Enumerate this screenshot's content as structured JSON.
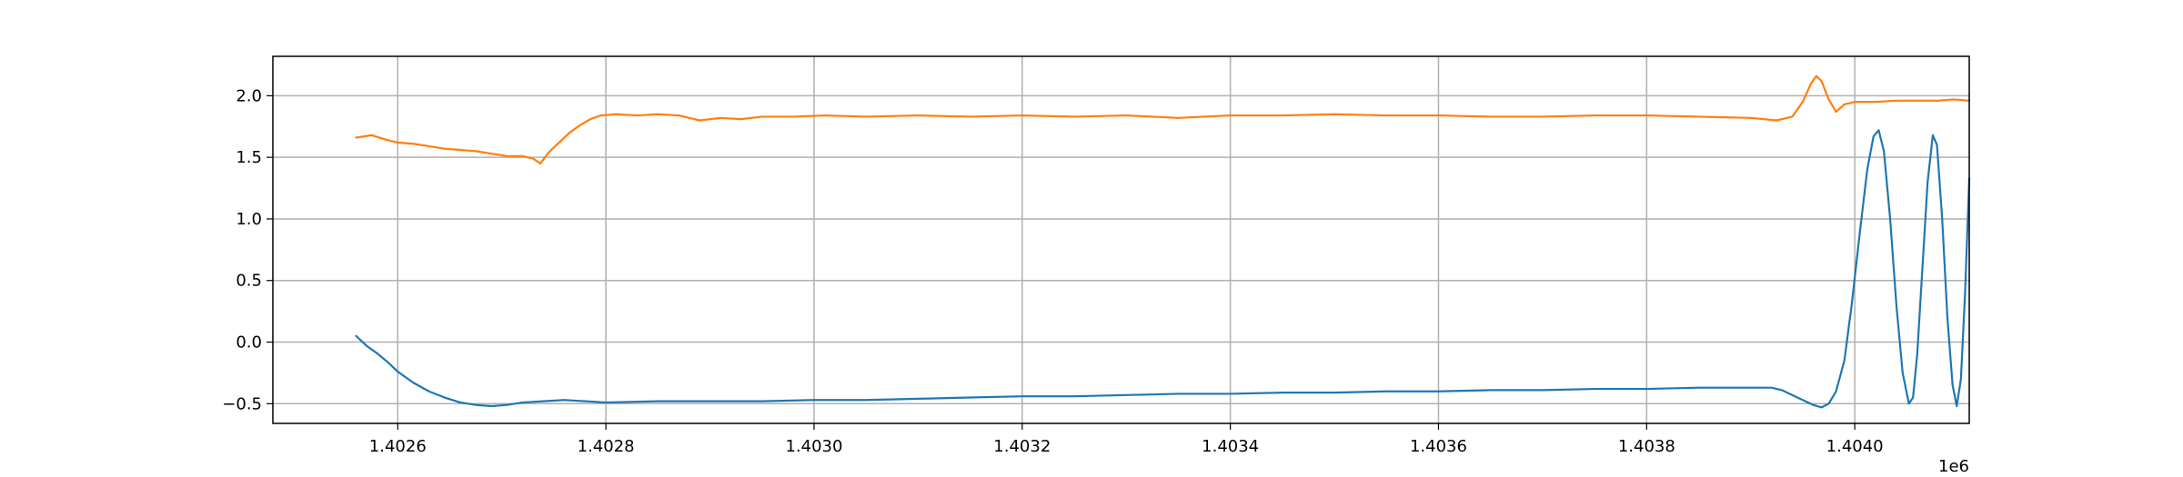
{
  "chart_data": {
    "type": "line",
    "title": "",
    "xlabel": "",
    "ylabel": "",
    "x_offset_label": "1e6",
    "xlim": [
      1402480,
      1404110
    ],
    "ylim": [
      -0.66,
      2.32
    ],
    "grid": true,
    "x_ticks": [
      1402600,
      1402800,
      1403000,
      1403200,
      1403400,
      1403600,
      1403800,
      1404000
    ],
    "x_tick_labels": [
      "1.4026",
      "1.4028",
      "1.4030",
      "1.4032",
      "1.4034",
      "1.4036",
      "1.4038",
      "1.4040"
    ],
    "y_ticks": [
      -0.5,
      0.0,
      0.5,
      1.0,
      1.5,
      2.0
    ],
    "y_tick_labels": [
      "−0.5",
      "0.0",
      "0.5",
      "1.0",
      "1.5",
      "2.0"
    ],
    "series": [
      {
        "color": "#1f77b4",
        "points": [
          [
            1402560,
            0.05
          ],
          [
            1402570,
            -0.03
          ],
          [
            1402580,
            -0.09
          ],
          [
            1402590,
            -0.16
          ],
          [
            1402600,
            -0.24
          ],
          [
            1402615,
            -0.33
          ],
          [
            1402630,
            -0.4
          ],
          [
            1402645,
            -0.45
          ],
          [
            1402660,
            -0.49
          ],
          [
            1402675,
            -0.51
          ],
          [
            1402690,
            -0.52
          ],
          [
            1402705,
            -0.51
          ],
          [
            1402720,
            -0.49
          ],
          [
            1402740,
            -0.48
          ],
          [
            1402760,
            -0.47
          ],
          [
            1402780,
            -0.48
          ],
          [
            1402800,
            -0.49
          ],
          [
            1402850,
            -0.48
          ],
          [
            1402900,
            -0.48
          ],
          [
            1402950,
            -0.48
          ],
          [
            1403000,
            -0.47
          ],
          [
            1403050,
            -0.47
          ],
          [
            1403100,
            -0.46
          ],
          [
            1403150,
            -0.45
          ],
          [
            1403200,
            -0.44
          ],
          [
            1403250,
            -0.44
          ],
          [
            1403300,
            -0.43
          ],
          [
            1403350,
            -0.42
          ],
          [
            1403400,
            -0.42
          ],
          [
            1403450,
            -0.41
          ],
          [
            1403500,
            -0.41
          ],
          [
            1403550,
            -0.4
          ],
          [
            1403600,
            -0.4
          ],
          [
            1403650,
            -0.39
          ],
          [
            1403700,
            -0.39
          ],
          [
            1403750,
            -0.38
          ],
          [
            1403800,
            -0.38
          ],
          [
            1403850,
            -0.37
          ],
          [
            1403900,
            -0.37
          ],
          [
            1403920,
            -0.37
          ],
          [
            1403930,
            -0.39
          ],
          [
            1403940,
            -0.43
          ],
          [
            1403950,
            -0.47
          ],
          [
            1403960,
            -0.51
          ],
          [
            1403968,
            -0.53
          ],
          [
            1403975,
            -0.5
          ],
          [
            1403982,
            -0.4
          ],
          [
            1403990,
            -0.15
          ],
          [
            1403997,
            0.3
          ],
          [
            1404005,
            0.9
          ],
          [
            1404012,
            1.4
          ],
          [
            1404018,
            1.67
          ],
          [
            1404023,
            1.72
          ],
          [
            1404028,
            1.55
          ],
          [
            1404034,
            1.0
          ],
          [
            1404040,
            0.3
          ],
          [
            1404046,
            -0.25
          ],
          [
            1404052,
            -0.5
          ],
          [
            1404056,
            -0.45
          ],
          [
            1404060,
            -0.1
          ],
          [
            1404065,
            0.6
          ],
          [
            1404070,
            1.3
          ],
          [
            1404075,
            1.68
          ],
          [
            1404079,
            1.6
          ],
          [
            1404084,
            1.0
          ],
          [
            1404089,
            0.2
          ],
          [
            1404094,
            -0.35
          ],
          [
            1404098,
            -0.52
          ],
          [
            1404102,
            -0.3
          ],
          [
            1404106,
            0.4
          ],
          [
            1404110,
            1.33
          ]
        ]
      },
      {
        "color": "#ff7f0e",
        "points": [
          [
            1402560,
            1.66
          ],
          [
            1402575,
            1.68
          ],
          [
            1402590,
            1.64
          ],
          [
            1402600,
            1.62
          ],
          [
            1402615,
            1.61
          ],
          [
            1402630,
            1.59
          ],
          [
            1402645,
            1.57
          ],
          [
            1402660,
            1.56
          ],
          [
            1402675,
            1.55
          ],
          [
            1402690,
            1.53
          ],
          [
            1402705,
            1.51
          ],
          [
            1402720,
            1.51
          ],
          [
            1402730,
            1.49
          ],
          [
            1402737,
            1.45
          ],
          [
            1402745,
            1.54
          ],
          [
            1402755,
            1.62
          ],
          [
            1402765,
            1.7
          ],
          [
            1402775,
            1.76
          ],
          [
            1402785,
            1.81
          ],
          [
            1402795,
            1.84
          ],
          [
            1402810,
            1.85
          ],
          [
            1402830,
            1.84
          ],
          [
            1402850,
            1.85
          ],
          [
            1402870,
            1.84
          ],
          [
            1402890,
            1.8
          ],
          [
            1402910,
            1.82
          ],
          [
            1402930,
            1.81
          ],
          [
            1402950,
            1.83
          ],
          [
            1402980,
            1.83
          ],
          [
            1403010,
            1.84
          ],
          [
            1403050,
            1.83
          ],
          [
            1403100,
            1.84
          ],
          [
            1403150,
            1.83
          ],
          [
            1403200,
            1.84
          ],
          [
            1403250,
            1.83
          ],
          [
            1403300,
            1.84
          ],
          [
            1403350,
            1.82
          ],
          [
            1403400,
            1.84
          ],
          [
            1403450,
            1.84
          ],
          [
            1403500,
            1.85
          ],
          [
            1403550,
            1.84
          ],
          [
            1403600,
            1.84
          ],
          [
            1403650,
            1.83
          ],
          [
            1403700,
            1.83
          ],
          [
            1403750,
            1.84
          ],
          [
            1403800,
            1.84
          ],
          [
            1403850,
            1.83
          ],
          [
            1403900,
            1.82
          ],
          [
            1403925,
            1.8
          ],
          [
            1403940,
            1.83
          ],
          [
            1403950,
            1.95
          ],
          [
            1403958,
            2.1
          ],
          [
            1403963,
            2.16
          ],
          [
            1403968,
            2.12
          ],
          [
            1403975,
            1.97
          ],
          [
            1403982,
            1.87
          ],
          [
            1403990,
            1.93
          ],
          [
            1404000,
            1.95
          ],
          [
            1404020,
            1.95
          ],
          [
            1404040,
            1.96
          ],
          [
            1404060,
            1.96
          ],
          [
            1404080,
            1.96
          ],
          [
            1404095,
            1.97
          ],
          [
            1404110,
            1.96
          ]
        ]
      }
    ]
  }
}
